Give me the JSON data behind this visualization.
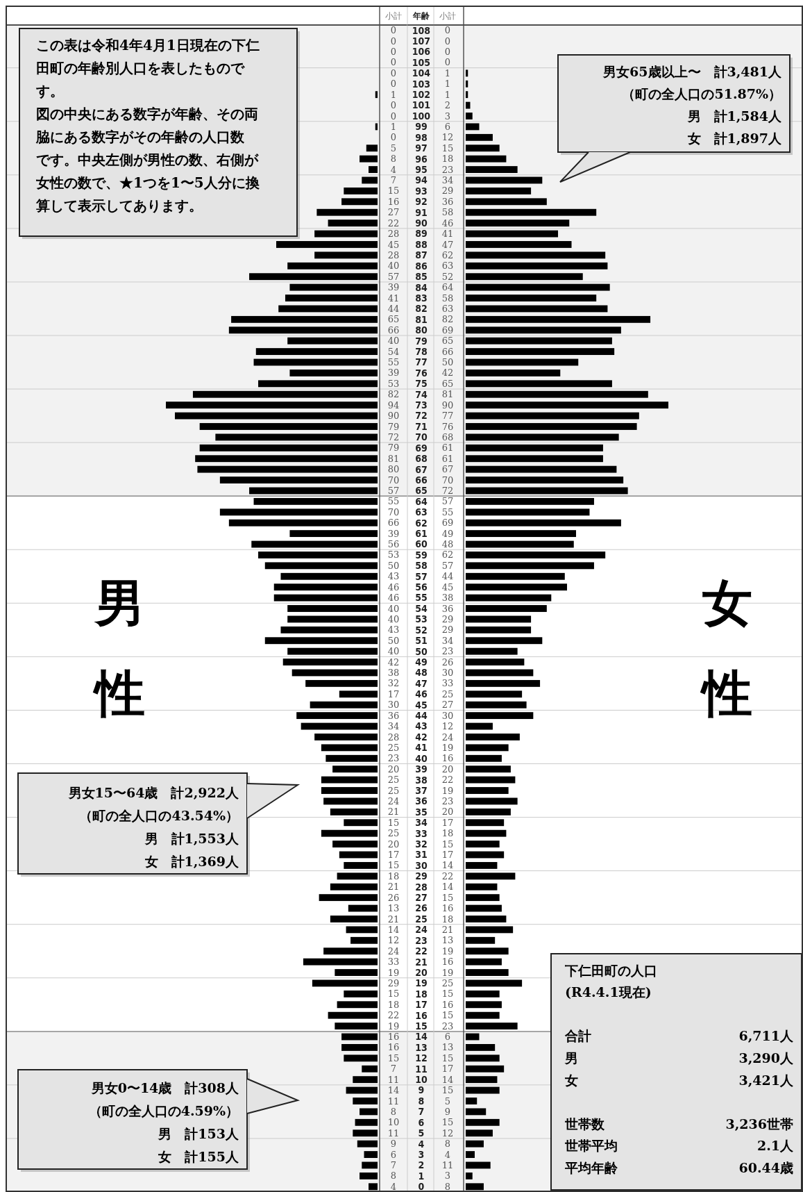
{
  "chart_data": [
    {
      "type": "bar",
      "orientation": "horizontal",
      "data_labels": true,
      "legend": "left",
      "tick_labels": false,
      "categories": [
        "108",
        "107",
        "106",
        "105",
        "104",
        "103",
        "102",
        "101",
        "100",
        "99",
        "98",
        "97",
        "96",
        "95",
        "94",
        "93",
        "92",
        "91",
        "90",
        "89",
        "88",
        "87",
        "86",
        "85",
        "84",
        "83",
        "82",
        "81",
        "80",
        "79",
        "78",
        "77",
        "76",
        "75",
        "74",
        "73",
        "72",
        "71",
        "70",
        "69",
        "68",
        "67",
        "66",
        "65",
        "64",
        "63",
        "62",
        "61",
        "60",
        "59",
        "58",
        "57",
        "56",
        "55",
        "54",
        "53",
        "52",
        "51",
        "50",
        "49",
        "48",
        "47",
        "46",
        "45",
        "44",
        "43",
        "42",
        "41",
        "40",
        "39",
        "38",
        "37",
        "36",
        "35",
        "34",
        "33",
        "32",
        "31",
        "30",
        "29",
        "28",
        "27",
        "26",
        "25",
        "24",
        "23",
        "22",
        "21",
        "20",
        "19",
        "18",
        "17",
        "16",
        "15",
        "14",
        "13",
        "12",
        "11",
        "10",
        "9",
        "8",
        "7",
        "6",
        "5",
        "4",
        "3",
        "2",
        "1",
        "0"
      ],
      "series": [
        {
          "name": "男性",
          "color": "#000000",
          "values": [
            0,
            0,
            0,
            0,
            0,
            0,
            1,
            0,
            0,
            1,
            0,
            5,
            8,
            4,
            7,
            15,
            16,
            27,
            22,
            28,
            45,
            28,
            40,
            57,
            39,
            41,
            44,
            65,
            66,
            40,
            54,
            55,
            39,
            53,
            82,
            94,
            90,
            79,
            72,
            79,
            81,
            80,
            70,
            57,
            55,
            70,
            66,
            39,
            56,
            53,
            50,
            43,
            46,
            46,
            40,
            40,
            43,
            50,
            40,
            42,
            38,
            32,
            17,
            30,
            36,
            34,
            28,
            25,
            23,
            20,
            25,
            25,
            24,
            21,
            15,
            25,
            20,
            17,
            15,
            18,
            21,
            26,
            13,
            21,
            14,
            12,
            24,
            33,
            19,
            29,
            15,
            18,
            22,
            19,
            16,
            16,
            15,
            7,
            11,
            14,
            11,
            8,
            10,
            11,
            9,
            6,
            7,
            8,
            4
          ]
        }
      ],
      "bands": [
        {
          "axis": "y",
          "from": "108",
          "to": "65",
          "color": "#f2f2f2"
        },
        {
          "axis": "y",
          "from": "14",
          "to": "0",
          "color": "#f2f2f2"
        }
      ],
      "annotations": [
        "この表は令和4年4月1日現在の下仁田町の年齢別人口を表したものです。",
        "図の中央にある数字が年齢、その両脇にある数字がその年齢の人口数です。中央左側が男性の数、右側が女性の数で、★1つを1〜5人分に換算して表示してあります。",
        "男女15〜64歳　計2,922人",
        "（町の全人口の43.54%）",
        "男　計1,553人",
        "女　計1,369人",
        "男女0〜14歳　計308人",
        "（町の全人口の4.59%）",
        "男　計153人",
        "女　計155人",
        "小計"
      ]
    },
    {
      "type": "bar",
      "orientation": "horizontal",
      "data_labels": true,
      "legend": "right",
      "categories": [
        "108",
        "107",
        "106",
        "105",
        "104",
        "103",
        "102",
        "101",
        "100",
        "99",
        "98",
        "97",
        "96",
        "95",
        "94",
        "93",
        "92",
        "91",
        "90",
        "89",
        "88",
        "87",
        "86",
        "85",
        "84",
        "83",
        "82",
        "81",
        "80",
        "79",
        "78",
        "77",
        "76",
        "75",
        "74",
        "73",
        "72",
        "71",
        "70",
        "69",
        "68",
        "67",
        "66",
        "65",
        "64",
        "63",
        "62",
        "61",
        "60",
        "59",
        "58",
        "57",
        "56",
        "55",
        "54",
        "53",
        "52",
        "51",
        "50",
        "49",
        "48",
        "47",
        "46",
        "45",
        "44",
        "43",
        "42",
        "41",
        "40",
        "39",
        "38",
        "37",
        "36",
        "35",
        "34",
        "33",
        "32",
        "31",
        "30",
        "29",
        "28",
        "27",
        "26",
        "25",
        "24",
        "23",
        "22",
        "21",
        "20",
        "19",
        "18",
        "17",
        "16",
        "15",
        "14",
        "13",
        "12",
        "11",
        "10",
        "9",
        "8",
        "7",
        "6",
        "5",
        "4",
        "3",
        "2",
        "1",
        "0"
      ],
      "series": [
        {
          "name": "女性",
          "color": "#000000",
          "values": [
            0,
            0,
            0,
            0,
            1,
            1,
            1,
            2,
            3,
            6,
            12,
            15,
            18,
            23,
            34,
            29,
            36,
            58,
            46,
            41,
            47,
            62,
            63,
            52,
            64,
            58,
            63,
            82,
            69,
            65,
            66,
            50,
            42,
            65,
            81,
            90,
            77,
            76,
            68,
            61,
            61,
            67,
            70,
            72,
            57,
            55,
            69,
            49,
            48,
            62,
            57,
            44,
            45,
            38,
            36,
            29,
            29,
            34,
            23,
            26,
            30,
            33,
            25,
            27,
            30,
            12,
            24,
            19,
            16,
            20,
            22,
            19,
            23,
            20,
            17,
            18,
            15,
            17,
            14,
            22,
            14,
            15,
            16,
            18,
            21,
            13,
            19,
            16,
            19,
            25,
            15,
            16,
            15,
            23,
            6,
            13,
            15,
            17,
            14,
            15,
            5,
            9,
            15,
            12,
            8,
            4,
            11,
            3,
            8
          ]
        }
      ],
      "bands": [
        {
          "axis": "y",
          "from": "108",
          "to": "65",
          "color": "#f2f2f2"
        },
        {
          "axis": "y",
          "from": "14",
          "to": "0",
          "color": "#f2f2f2"
        }
      ],
      "annotations": [
        "男女65歳以上〜　計3,481人",
        "（町の全人口の51.87%）",
        "男　計1,584人",
        "女　計1,897人",
        "下仁田町の人口",
        "(R4.4.1現在)",
        "合計",
        "6,711人",
        "男",
        "3,290人",
        "女",
        "3,421人",
        "世帯数",
        "3,236世帯",
        "世帯平均",
        "2.1人",
        "平均年齢",
        "60.44歳",
        "年齢",
        "小計"
      ]
    }
  ]
}
